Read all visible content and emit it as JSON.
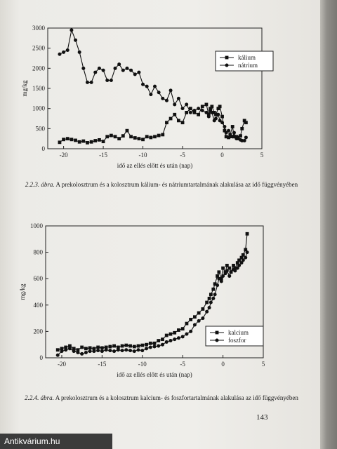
{
  "page_number": "143",
  "watermark": "Antikvárium.hu",
  "figures": [
    {
      "caption_label": "2.2.3. ábra.",
      "caption_text": "A prekolosztrum és a kolosztrum kálium- és nátriumtartalmának alakulása az idő függvényében"
    },
    {
      "caption_label": "2.2.4. ábra.",
      "caption_text": "A prekolosztrum és a kolosztrum kalcium- és foszfortartalmának alakulása az idő függvényében"
    }
  ],
  "chart_data": [
    {
      "type": "line",
      "xlabel": "idő az ellés előtt és után (nap)",
      "ylabel": "mg/kg",
      "xlim": [
        -22,
        5
      ],
      "ylim": [
        0,
        3000
      ],
      "xticks": [
        -20,
        -15,
        -10,
        -5,
        0,
        5
      ],
      "yticks": [
        0,
        500,
        1000,
        1500,
        2000,
        2500,
        3000
      ],
      "legend_position": "top-right",
      "series": [
        {
          "name": "kálium",
          "marker": "square",
          "x": [
            -20.5,
            -20,
            -19.5,
            -19,
            -18.5,
            -18,
            -17.5,
            -17,
            -16.5,
            -16,
            -15.5,
            -15,
            -14.5,
            -14,
            -13.5,
            -13,
            -12.5,
            -12,
            -11.5,
            -11,
            -10.5,
            -10,
            -9.5,
            -9,
            -8.5,
            -8,
            -7.5,
            -7,
            -6.5,
            -6,
            -5.5,
            -5,
            -4.5,
            -4,
            -3.5,
            -3,
            -2.5,
            -2,
            -1.7,
            -1.5,
            -1.3,
            -1,
            -0.8,
            -0.5,
            -0.3,
            0,
            0.3,
            0.5,
            0.8,
            1,
            1.3,
            1.5,
            1.8,
            2,
            2.3,
            2.5,
            2.8,
            3
          ],
          "y": [
            160,
            230,
            250,
            230,
            210,
            170,
            190,
            150,
            170,
            200,
            220,
            180,
            300,
            330,
            300,
            250,
            320,
            450,
            300,
            270,
            250,
            230,
            300,
            280,
            300,
            330,
            350,
            650,
            750,
            850,
            700,
            650,
            900,
            1000,
            900,
            850,
            1050,
            1100,
            850,
            1000,
            1050,
            900,
            850,
            1000,
            1050,
            800,
            450,
            300,
            280,
            350,
            550,
            300,
            300,
            280,
            320,
            500,
            700,
            650
          ]
        },
        {
          "name": "nátrium",
          "marker": "circle",
          "x": [
            -20.5,
            -20,
            -19.5,
            -19,
            -18.5,
            -18,
            -17.5,
            -17,
            -16.5,
            -16,
            -15.5,
            -15,
            -14.5,
            -14,
            -13.5,
            -13,
            -12.5,
            -12,
            -11.5,
            -11,
            -10.5,
            -10,
            -9.5,
            -9,
            -8.5,
            -8,
            -7.5,
            -7,
            -6.5,
            -6,
            -5.5,
            -5,
            -4.5,
            -4,
            -3.5,
            -3,
            -2.5,
            -2,
            -1.7,
            -1.5,
            -1.3,
            -1,
            -0.8,
            -0.5,
            -0.3,
            0,
            0.3,
            0.5,
            0.8,
            1,
            1.3,
            1.5,
            1.8,
            2,
            2.3,
            2.5,
            2.8,
            3
          ],
          "y": [
            2350,
            2400,
            2450,
            2950,
            2700,
            2400,
            2000,
            1650,
            1650,
            1900,
            2000,
            1950,
            1700,
            1700,
            2000,
            2100,
            1950,
            2000,
            1950,
            1850,
            1900,
            1600,
            1550,
            1350,
            1550,
            1400,
            1250,
            1200,
            1450,
            1100,
            1250,
            1000,
            1100,
            900,
            950,
            1000,
            950,
            900,
            800,
            950,
            900,
            700,
            750,
            850,
            700,
            650,
            550,
            400,
            450,
            300,
            300,
            400,
            250,
            250,
            220,
            200,
            200,
            280
          ]
        }
      ]
    },
    {
      "type": "line",
      "xlabel": "idő az ellés előtt és után (nap)",
      "ylabel": "mg/kg",
      "xlim": [
        -22,
        5
      ],
      "ylim": [
        0,
        1000
      ],
      "xticks": [
        -20,
        -15,
        -10,
        -5,
        0,
        5
      ],
      "yticks": [
        0,
        200,
        400,
        600,
        800,
        1000
      ],
      "legend_position": "bottom-right",
      "series": [
        {
          "name": "kalcium",
          "marker": "square",
          "x": [
            -20.5,
            -20,
            -19.5,
            -19,
            -18.5,
            -18,
            -17.5,
            -17,
            -16.5,
            -16,
            -15.5,
            -15,
            -14.5,
            -14,
            -13.5,
            -13,
            -12.5,
            -12,
            -11.5,
            -11,
            -10.5,
            -10,
            -9.5,
            -9,
            -8.5,
            -8,
            -7.5,
            -7,
            -6.5,
            -6,
            -5.5,
            -5,
            -4.5,
            -4,
            -3.5,
            -3,
            -2.5,
            -2,
            -1.7,
            -1.5,
            -1.2,
            -1,
            -0.7,
            -0.5,
            -0.2,
            0,
            0.3,
            0.5,
            0.8,
            1,
            1.3,
            1.5,
            1.8,
            2,
            2.3,
            2.5,
            2.8,
            3
          ],
          "y": [
            60,
            70,
            80,
            90,
            70,
            60,
            80,
            70,
            75,
            70,
            80,
            75,
            80,
            85,
            90,
            80,
            90,
            95,
            90,
            85,
            90,
            95,
            100,
            110,
            110,
            130,
            140,
            170,
            180,
            190,
            210,
            220,
            260,
            290,
            310,
            340,
            370,
            420,
            450,
            480,
            520,
            560,
            620,
            650,
            600,
            680,
            650,
            700,
            680,
            650,
            700,
            680,
            720,
            740,
            760,
            780,
            820,
            940
          ]
        },
        {
          "name": "foszfor",
          "marker": "circle",
          "x": [
            -20.5,
            -20,
            -19.5,
            -19,
            -18.5,
            -18,
            -17.5,
            -17,
            -16.5,
            -16,
            -15.5,
            -15,
            -14.5,
            -14,
            -13.5,
            -13,
            -12.5,
            -12,
            -11.5,
            -11,
            -10.5,
            -10,
            -9.5,
            -9,
            -8.5,
            -8,
            -7.5,
            -7,
            -6.5,
            -6,
            -5.5,
            -5,
            -4.5,
            -4,
            -3.5,
            -3,
            -2.5,
            -2,
            -1.7,
            -1.5,
            -1.2,
            -1,
            -0.7,
            -0.5,
            -0.2,
            0,
            0.3,
            0.5,
            0.8,
            1,
            1.3,
            1.5,
            1.8,
            2,
            2.3,
            2.5,
            2.8,
            3
          ],
          "y": [
            20,
            50,
            60,
            70,
            50,
            40,
            30,
            40,
            50,
            50,
            55,
            50,
            60,
            55,
            50,
            60,
            55,
            60,
            55,
            50,
            60,
            55,
            70,
            80,
            85,
            90,
            100,
            120,
            130,
            140,
            150,
            160,
            180,
            200,
            250,
            280,
            300,
            350,
            380,
            420,
            450,
            480,
            550,
            600,
            580,
            620,
            640,
            660,
            620,
            650,
            670,
            660,
            680,
            700,
            720,
            740,
            760,
            800
          ]
        }
      ]
    }
  ]
}
